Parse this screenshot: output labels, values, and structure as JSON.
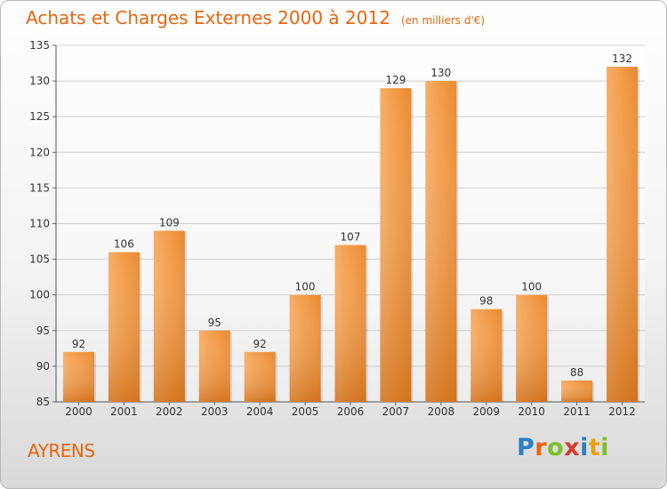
{
  "title": "Achats et Charges Externes 2000 à 2012",
  "unit": "(en milliers d'€)",
  "place": "AYRENS",
  "logo": {
    "letters": [
      "P",
      "r",
      "o",
      "x",
      "i",
      "t",
      "i"
    ],
    "colors": [
      "#2c7fc9",
      "#e8650f",
      "#7fbf2a",
      "#d43a2a",
      "#2c7fc9",
      "#e8a20f",
      "#7fbf2a"
    ]
  },
  "chart_data": {
    "type": "bar",
    "title": "Achats et Charges Externes 2000 à 2012",
    "categories": [
      "2000",
      "2001",
      "2002",
      "2003",
      "2004",
      "2005",
      "2006",
      "2007",
      "2008",
      "2009",
      "2010",
      "2011",
      "2012"
    ],
    "values": [
      92,
      106,
      109,
      95,
      92,
      100,
      107,
      129,
      130,
      98,
      100,
      88,
      132
    ],
    "ylim": [
      85,
      135
    ],
    "yticks": [
      85,
      90,
      95,
      100,
      105,
      110,
      115,
      120,
      125,
      130,
      135
    ],
    "grid": true,
    "bar_color_top": "#f6a455",
    "bar_color_bottom": "#c96a16"
  }
}
